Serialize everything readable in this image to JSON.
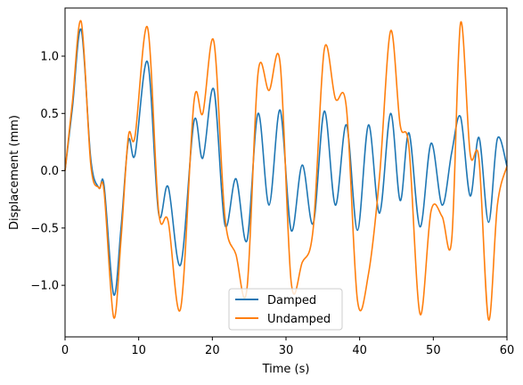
{
  "chart_data": {
    "type": "line",
    "xlabel": "Time (s)",
    "ylabel": "Displacement (mm)",
    "xlim": [
      0,
      60
    ],
    "ylim": [
      -1.45,
      1.42
    ],
    "x_ticks": [
      0,
      10,
      20,
      30,
      40,
      50,
      60
    ],
    "x_tick_labels": [
      "0",
      "10",
      "20",
      "30",
      "40",
      "50",
      "60"
    ],
    "y_ticks": [
      1.0,
      0.5,
      0.0,
      -0.5,
      -1.0
    ],
    "y_tick_labels": [
      "1.0",
      "0.5",
      "0.0",
      "−0.5",
      "−1.0"
    ],
    "grid": false,
    "legend_position": "lower center",
    "series": [
      {
        "name": "Damped",
        "color": "#1f77b4",
        "x": [
          0,
          1,
          2.2,
          3.5,
          4.6,
          5.3,
          6.6,
          7.6,
          8.6,
          9.5,
          11.2,
          12.7,
          14,
          15.7,
          17.5,
          18.7,
          20.2,
          21.7,
          23.2,
          24.7,
          26.2,
          27.7,
          29.2,
          30.7,
          32.2,
          33.7,
          35.2,
          36.7,
          38.2,
          39.7,
          41.2,
          42.7,
          44.2,
          45.5,
          46.7,
          48.2,
          49.7,
          51.2,
          52.5,
          53.7,
          55,
          56.2,
          57.5,
          58.7,
          60
        ],
        "y": [
          0.0,
          0.55,
          1.23,
          0.1,
          -0.15,
          -0.13,
          -1.08,
          -0.5,
          0.26,
          0.14,
          0.95,
          -0.37,
          -0.14,
          -0.82,
          0.43,
          0.11,
          0.71,
          -0.47,
          -0.07,
          -0.61,
          0.5,
          -0.3,
          0.53,
          -0.52,
          0.05,
          -0.46,
          0.52,
          -0.3,
          0.4,
          -0.52,
          0.4,
          -0.37,
          0.5,
          -0.26,
          0.33,
          -0.49,
          0.24,
          -0.3,
          0.16,
          0.47,
          -0.22,
          0.29,
          -0.45,
          0.28,
          0.04
        ]
      },
      {
        "name": "Undamped",
        "color": "#ff7f0e",
        "x": [
          0,
          1,
          2.2,
          3.5,
          4.6,
          5.3,
          6.6,
          7.6,
          8.6,
          9.5,
          11.2,
          12.7,
          14,
          15.7,
          17.5,
          18.7,
          20.2,
          21.7,
          23.2,
          24.7,
          26.2,
          27.7,
          29.2,
          30.7,
          32.2,
          33.7,
          35.2,
          36.7,
          38.2,
          39.7,
          41.2,
          42.7,
          44.2,
          45.5,
          46.7,
          48.2,
          49.7,
          51.2,
          52.5,
          53.7,
          55,
          56.2,
          57.5,
          58.7,
          60
        ],
        "y": [
          0.0,
          0.6,
          1.3,
          0.05,
          -0.15,
          -0.18,
          -1.28,
          -0.6,
          0.3,
          0.3,
          1.25,
          -0.35,
          -0.44,
          -1.2,
          0.6,
          0.5,
          1.13,
          -0.4,
          -0.73,
          -1.03,
          0.85,
          0.7,
          0.94,
          -0.97,
          -0.8,
          -0.5,
          1.06,
          0.63,
          0.55,
          -1.13,
          -0.9,
          -0.05,
          1.22,
          0.4,
          0.2,
          -1.25,
          -0.35,
          -0.4,
          -0.6,
          1.29,
          0.15,
          0.1,
          -1.3,
          -0.3,
          0.04
        ]
      }
    ]
  }
}
